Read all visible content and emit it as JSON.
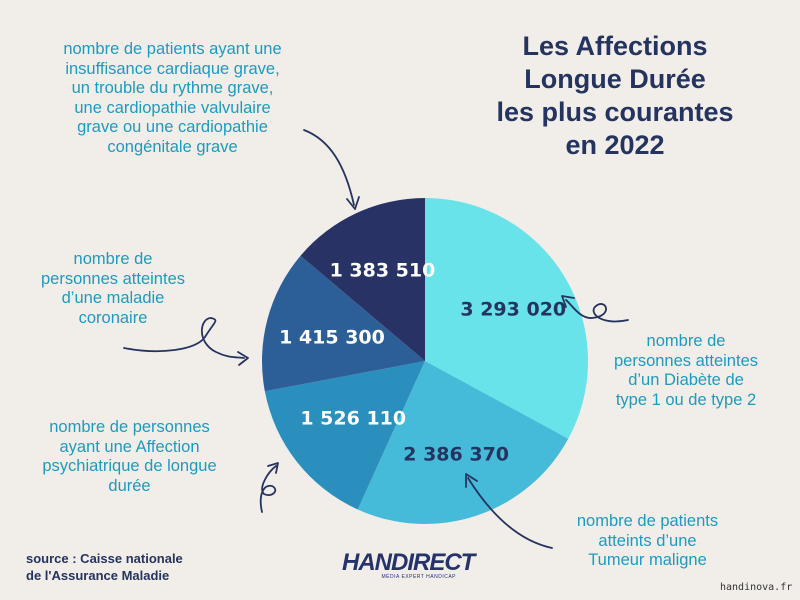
{
  "title_lines": [
    "Les Affections",
    "Longue Durée",
    "les plus courantes",
    "en 2022"
  ],
  "chart_data": {
    "type": "pie",
    "title": "Les Affections Longue Durée les plus courantes en 2022",
    "slices": [
      {
        "value": 3293020,
        "display": "3 293 020",
        "color": "#67e3e9",
        "label_lines": [
          "nombre de",
          "personnes atteintes",
          "d’un Diabète de",
          "type 1 ou de type 2"
        ]
      },
      {
        "value": 2386370,
        "display": "2 386 370",
        "color": "#45bbd9",
        "label_lines": [
          "nombre de patients",
          "atteints d’une",
          "Tumeur maligne"
        ]
      },
      {
        "value": 1526110,
        "display": "1 526 110",
        "color": "#2b8fbd",
        "label_lines": [
          "nombre de personnes",
          "ayant une Affection",
          "psychiatrique de longue",
          "durée"
        ]
      },
      {
        "value": 1415300,
        "display": "1 415 300",
        "color": "#2c5e97",
        "label_lines": [
          "nombre de",
          "personnes atteintes",
          "d’une maladie",
          "coronaire"
        ]
      },
      {
        "value": 1383510,
        "display": "1 383 510",
        "color": "#283264",
        "label_lines": [
          "nombre de patients ayant une",
          "insuffisance cardiaque grave,",
          "un trouble du rythme grave,",
          "une cardiopathie valvulaire",
          "grave ou une cardiopathie",
          "congénitale grave"
        ]
      }
    ]
  },
  "source_lines": [
    "source : Caisse nationale",
    "de l'Assurance Maladie"
  ],
  "logo": {
    "text": "HANDIRECT",
    "tagline": "MÉDIA EXPERT HANDICAP"
  },
  "watermark": "handinova.fr"
}
